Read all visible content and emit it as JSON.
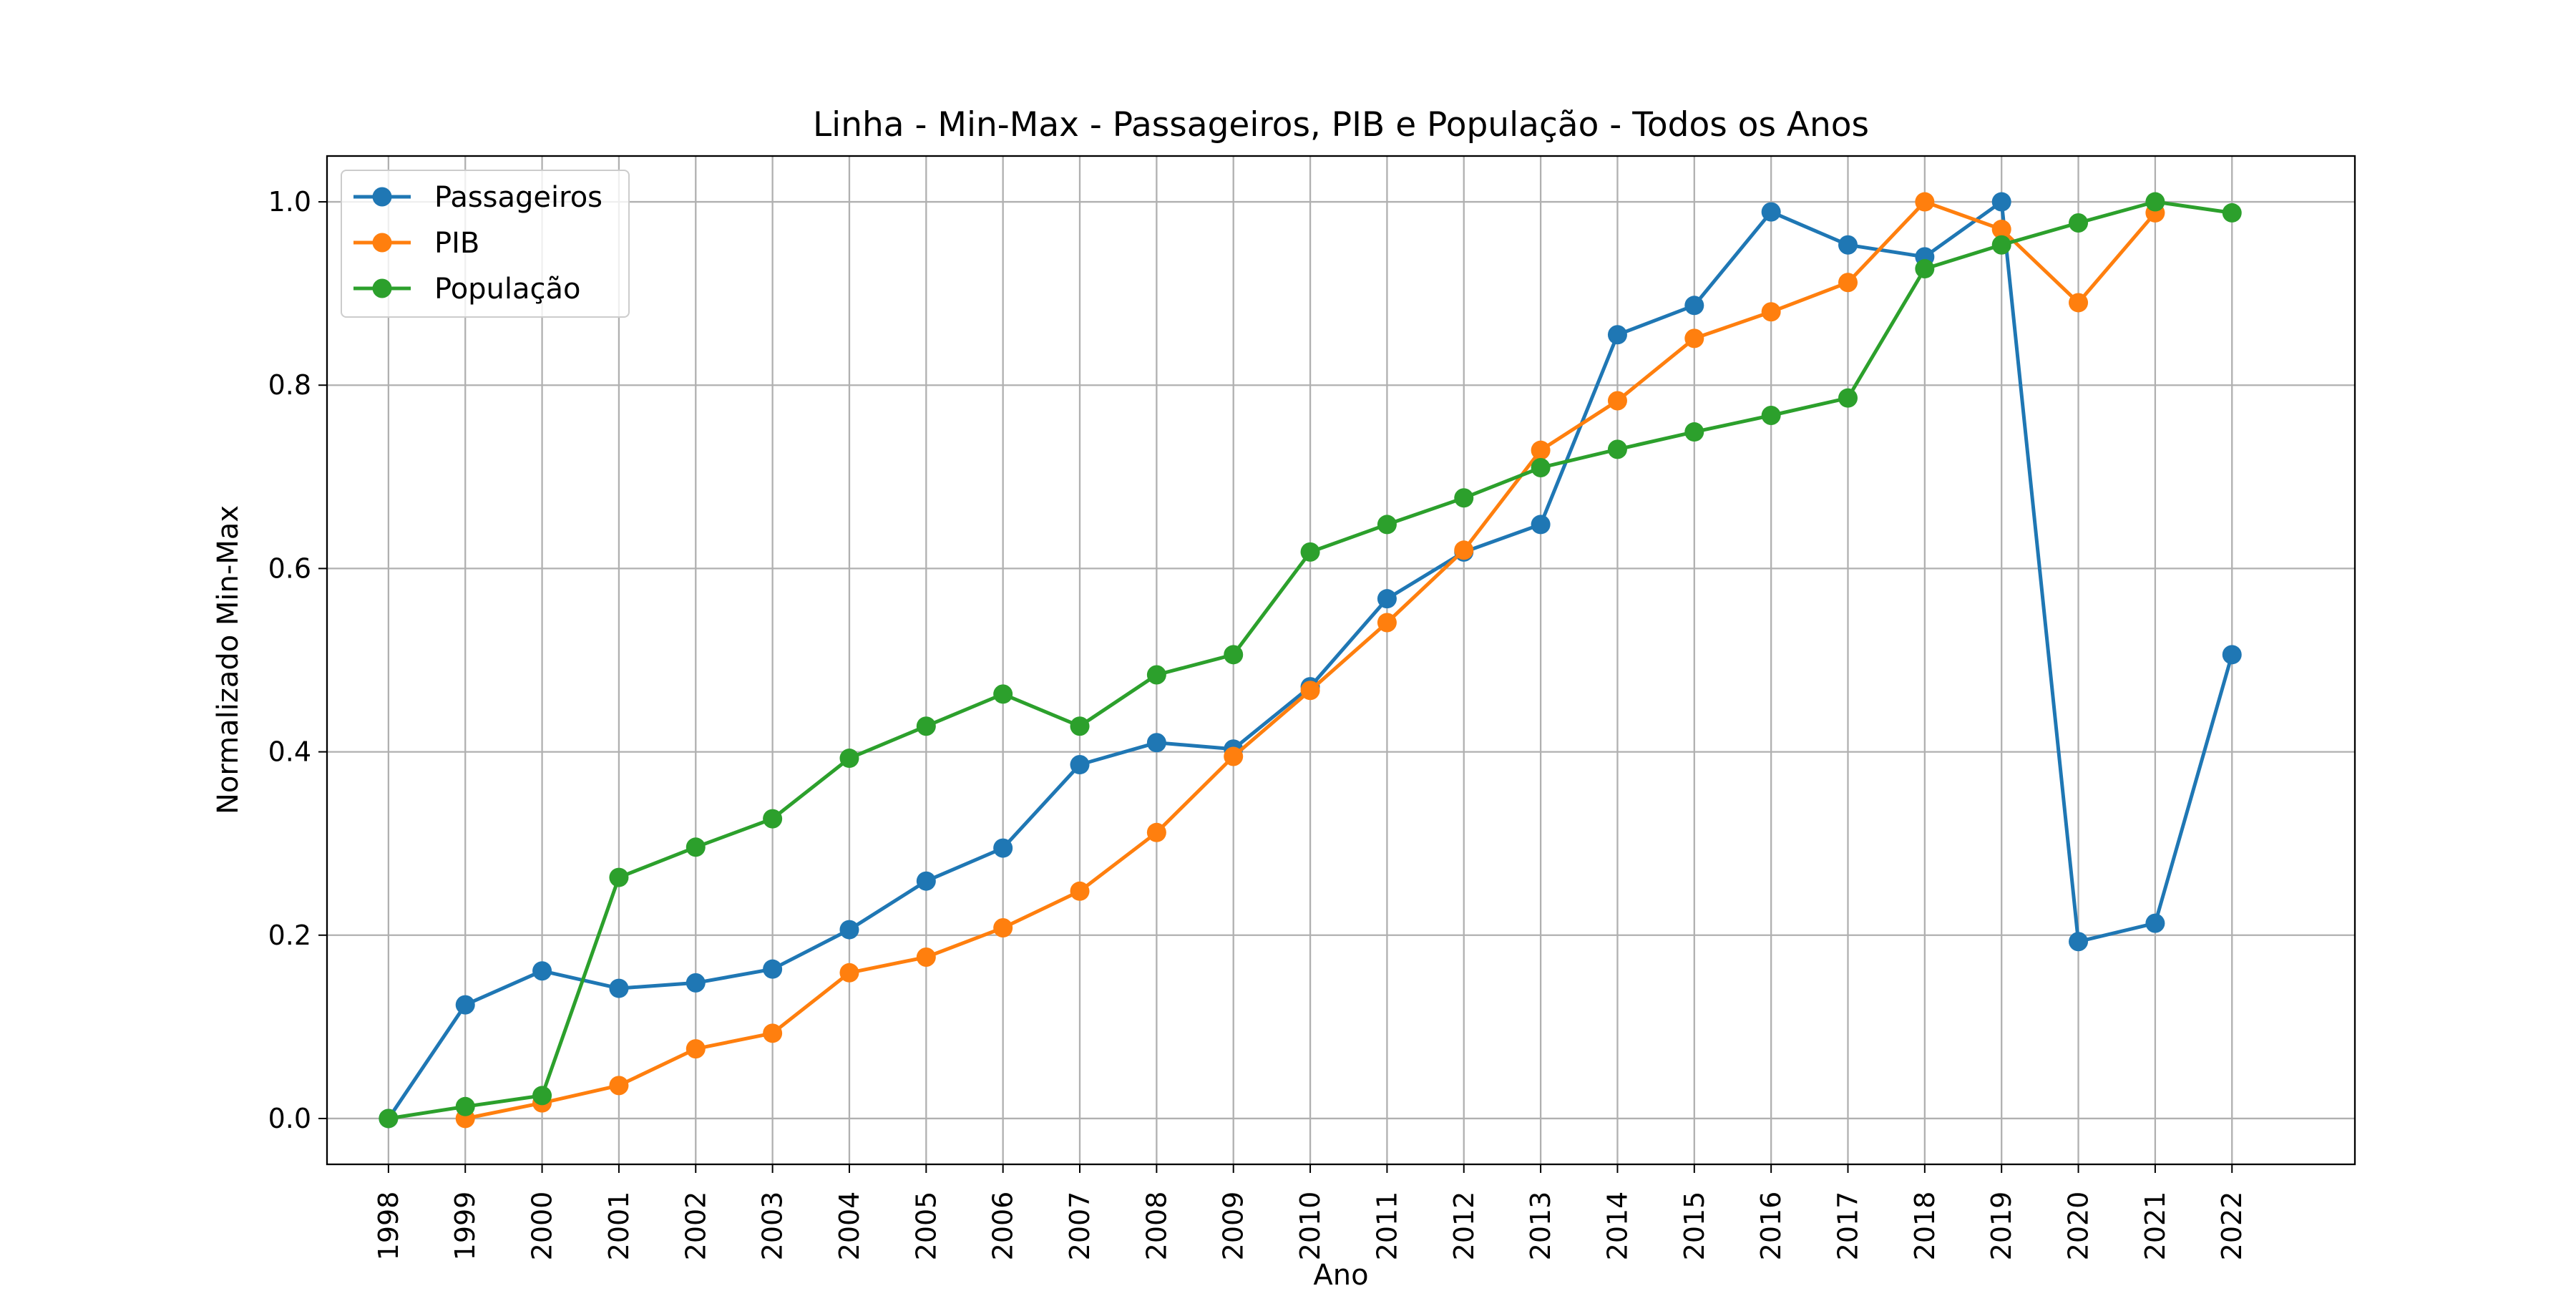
{
  "chart_data": {
    "type": "line",
    "title": "Linha - Min-Max - Passageiros, PIB e População - Todos os Anos",
    "xlabel": "Ano",
    "ylabel": "Normalizado Min-Max",
    "x": [
      1998,
      1999,
      2000,
      2001,
      2002,
      2003,
      2004,
      2005,
      2006,
      2007,
      2008,
      2009,
      2010,
      2011,
      2012,
      2013,
      2014,
      2015,
      2016,
      2017,
      2018,
      2019,
      2020,
      2021,
      2022
    ],
    "x_tick_labels": [
      "1998",
      "1999",
      "2000",
      "2001",
      "2002",
      "2003",
      "2004",
      "2005",
      "2006",
      "2007",
      "2008",
      "2009",
      "2010",
      "2011",
      "2012",
      "2013",
      "2014",
      "2015",
      "2016",
      "2017",
      "2018",
      "2019",
      "2020",
      "2021",
      "2022"
    ],
    "y_tick_labels": [
      "0.0",
      "0.2",
      "0.4",
      "0.6",
      "0.8",
      "1.0"
    ],
    "y_ticks": [
      0.0,
      0.2,
      0.4,
      0.6,
      0.8,
      1.0
    ],
    "xlim": [
      1997.2,
      2023.6
    ],
    "ylim": [
      -0.05,
      1.05
    ],
    "grid": true,
    "legend_position": "top-left",
    "series": [
      {
        "name": "Passageiros",
        "color": "#1f77b4",
        "values": [
          0.0,
          0.124,
          0.161,
          0.142,
          0.148,
          0.163,
          0.206,
          0.259,
          0.295,
          0.386,
          0.41,
          0.403,
          0.471,
          0.567,
          0.618,
          0.648,
          0.855,
          0.887,
          0.989,
          0.953,
          0.94,
          1.0,
          0.193,
          0.213,
          0.506
        ]
      },
      {
        "name": "PIB",
        "color": "#ff7f0e",
        "values": [
          null,
          0.0,
          0.017,
          0.036,
          0.076,
          0.093,
          0.159,
          0.176,
          0.208,
          0.248,
          0.312,
          0.395,
          0.467,
          0.541,
          0.62,
          0.729,
          0.783,
          0.851,
          0.88,
          0.912,
          1.0,
          0.97,
          0.89,
          0.988,
          null
        ]
      },
      {
        "name": "População",
        "color": "#2ca02c",
        "values": [
          0.0,
          0.013,
          0.025,
          0.263,
          0.296,
          0.327,
          0.393,
          0.428,
          0.463,
          0.428,
          0.484,
          0.506,
          0.618,
          0.648,
          0.677,
          0.71,
          0.73,
          0.749,
          0.767,
          0.786,
          0.927,
          0.953,
          0.977,
          1.0,
          0.988
        ]
      }
    ]
  }
}
